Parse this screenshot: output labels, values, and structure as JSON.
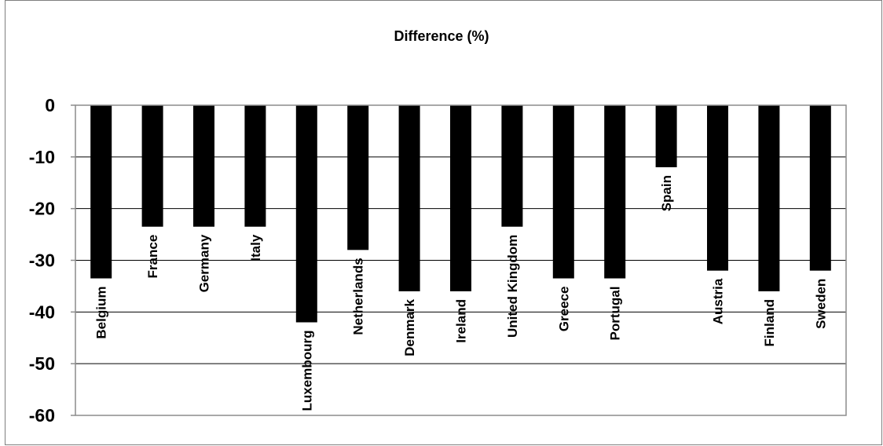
{
  "chart_data": {
    "type": "bar",
    "title": "Difference (%)",
    "xlabel": "",
    "ylabel": "",
    "ylim": [
      -60,
      0
    ],
    "yticks": [
      "0",
      "-10",
      "-20",
      "-30",
      "-40",
      "-50",
      "-60"
    ],
    "grid": true,
    "bar_color": "#000000",
    "categories": [
      "Belgium",
      "France",
      "Germany",
      "Italy",
      "Luxembourg",
      "Netherlands",
      "Denmark",
      "Ireland",
      "United Kingdom",
      "Greece",
      "Portugal",
      "Spain",
      "Austria",
      "Finland",
      "Sweden"
    ],
    "values": [
      -33.5,
      -23.5,
      -23.5,
      -23.5,
      -42,
      -28,
      -36,
      -36,
      -23.5,
      -33.5,
      -33.5,
      -12,
      -32,
      -36,
      -32
    ]
  }
}
